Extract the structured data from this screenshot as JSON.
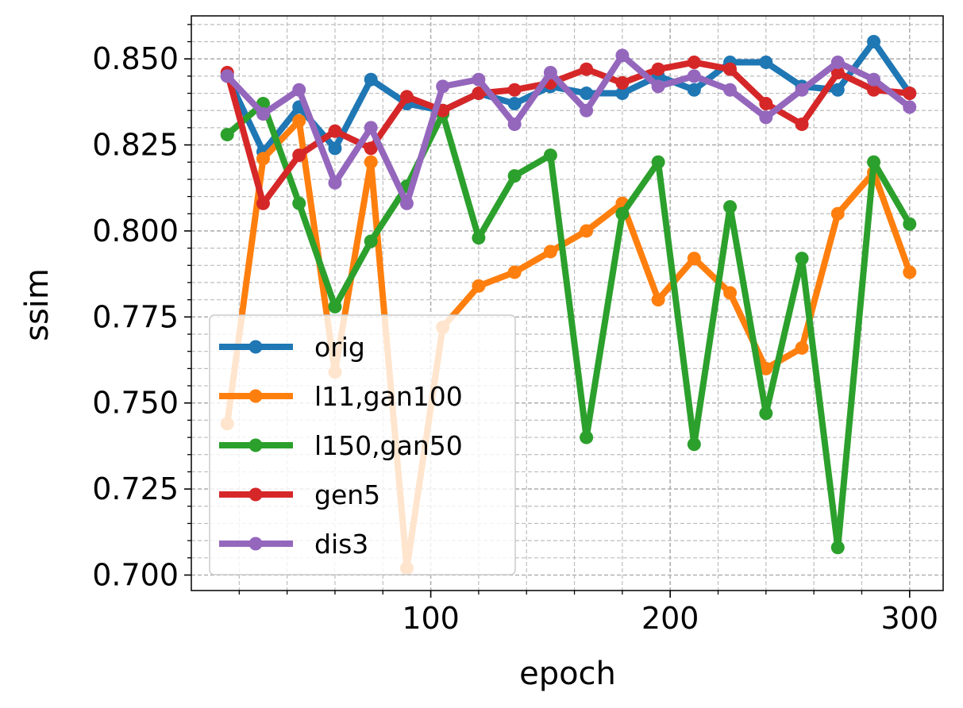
{
  "chart_data": {
    "type": "line",
    "xlabel": "epoch",
    "ylabel": "ssim",
    "xlim": [
      0,
      314
    ],
    "ylim": [
      0.6955,
      0.8625
    ],
    "xticks": [
      100,
      200,
      300
    ],
    "xtick_labels": [
      "100",
      "200",
      "300"
    ],
    "yticks": [
      0.7,
      0.725,
      0.75,
      0.775,
      0.8,
      0.825,
      0.85
    ],
    "ytick_labels": [
      "0.700",
      "0.725",
      "0.750",
      "0.775",
      "0.800",
      "0.825",
      "0.850"
    ],
    "grid": true,
    "grid_minor": true,
    "legend_position": "lower-left",
    "x": [
      15,
      30,
      45,
      60,
      75,
      90,
      105,
      120,
      135,
      150,
      165,
      180,
      195,
      210,
      225,
      240,
      255,
      270,
      285,
      300
    ],
    "series": [
      {
        "name": "orig",
        "color": "#1f77b4",
        "values": [
          0.845,
          0.823,
          0.836,
          0.824,
          0.844,
          0.837,
          0.835,
          0.84,
          0.837,
          0.842,
          0.84,
          0.84,
          0.845,
          0.841,
          0.849,
          0.849,
          0.842,
          0.841,
          0.855,
          0.84
        ]
      },
      {
        "name": "l11,gan100",
        "color": "#ff7f0e",
        "values": [
          0.744,
          0.821,
          0.832,
          0.759,
          0.82,
          0.702,
          0.772,
          0.784,
          0.788,
          0.794,
          0.8,
          0.808,
          0.78,
          0.792,
          0.782,
          0.76,
          0.766,
          0.805,
          0.817,
          0.788
        ]
      },
      {
        "name": "l150,gan50",
        "color": "#2ca02c",
        "values": [
          0.828,
          0.837,
          0.808,
          0.778,
          0.797,
          0.813,
          0.834,
          0.798,
          0.816,
          0.822,
          0.74,
          0.805,
          0.82,
          0.738,
          0.807,
          0.747,
          0.792,
          0.708,
          0.82,
          0.802
        ]
      },
      {
        "name": "gen5",
        "color": "#d62728",
        "values": [
          0.846,
          0.808,
          0.822,
          0.829,
          0.824,
          0.839,
          0.835,
          0.84,
          0.841,
          0.843,
          0.847,
          0.843,
          0.847,
          0.849,
          0.847,
          0.837,
          0.831,
          0.846,
          0.841,
          0.84
        ]
      },
      {
        "name": "dis3",
        "color": "#9467bd",
        "values": [
          0.845,
          0.834,
          0.841,
          0.814,
          0.83,
          0.808,
          0.842,
          0.844,
          0.831,
          0.846,
          0.835,
          0.851,
          0.842,
          0.845,
          0.841,
          0.833,
          0.841,
          0.849,
          0.844,
          0.836
        ]
      }
    ]
  }
}
